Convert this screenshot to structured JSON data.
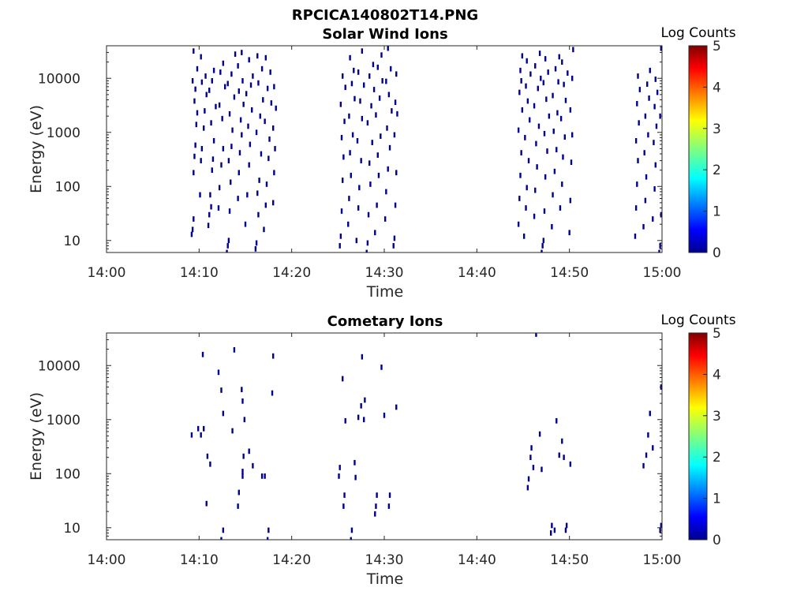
{
  "figure_title": "RPCICA140802T14.PNG",
  "chart_data": [
    {
      "type": "heatmap",
      "title": "Solar Wind Ions",
      "xlabel": "Time",
      "ylabel": "Energy (eV)",
      "xticks": [
        "14:00",
        "14:10",
        "14:20",
        "14:30",
        "14:40",
        "14:50",
        "15:00"
      ],
      "xlim": [
        "14:00",
        "15:00"
      ],
      "yscale": "log",
      "yticks": [
        "10",
        "100",
        "1000",
        "10000"
      ],
      "ylim": [
        6,
        40000
      ],
      "colorbar": {
        "label": "Log Counts",
        "ticks": [
          "0",
          "1",
          "2",
          "3",
          "4",
          "5"
        ],
        "range": [
          0,
          5
        ],
        "colormap": "jet"
      },
      "marker_color": "#00008f",
      "points": [
        [
          9.2,
          13
        ],
        [
          9.3,
          16
        ],
        [
          9.4,
          25
        ],
        [
          9.4,
          180
        ],
        [
          9.5,
          360
        ],
        [
          9.6,
          580
        ],
        [
          9.7,
          1400
        ],
        [
          9.8,
          2300
        ],
        [
          9.5,
          3800
        ],
        [
          9.6,
          6300
        ],
        [
          9.3,
          9000
        ],
        [
          9.8,
          15000
        ],
        [
          9.4,
          32000
        ],
        [
          10.1,
          70
        ],
        [
          10.2,
          300
        ],
        [
          10.3,
          500
        ],
        [
          10.5,
          1200
        ],
        [
          10.6,
          2500
        ],
        [
          10.8,
          5000
        ],
        [
          10.3,
          8500
        ],
        [
          10.7,
          11000
        ],
        [
          10.2,
          25000
        ],
        [
          11.0,
          19
        ],
        [
          11.1,
          30
        ],
        [
          11.3,
          42
        ],
        [
          11.2,
          70
        ],
        [
          11.4,
          200
        ],
        [
          11.5,
          320
        ],
        [
          11.6,
          700
        ],
        [
          11.3,
          1500
        ],
        [
          11.8,
          3000
        ],
        [
          11.1,
          6000
        ],
        [
          11.4,
          9000
        ],
        [
          11.6,
          14000
        ],
        [
          12.1,
          40
        ],
        [
          12.2,
          95
        ],
        [
          12.4,
          250
        ],
        [
          12.6,
          500
        ],
        [
          12.5,
          1800
        ],
        [
          12.2,
          3200
        ],
        [
          12.8,
          7000
        ],
        [
          12.3,
          13000
        ],
        [
          12.6,
          19000
        ],
        [
          13.0,
          6
        ],
        [
          13.1,
          8
        ],
        [
          13.2,
          10
        ],
        [
          13.3,
          35
        ],
        [
          13.4,
          120
        ],
        [
          13.2,
          300
        ],
        [
          13.5,
          550
        ],
        [
          13.6,
          1100
        ],
        [
          13.3,
          2200
        ],
        [
          13.8,
          4500
        ],
        [
          13.1,
          8000
        ],
        [
          13.5,
          12000
        ],
        [
          13.9,
          28000
        ],
        [
          14.2,
          60
        ],
        [
          14.3,
          180
        ],
        [
          14.4,
          420
        ],
        [
          14.6,
          900
        ],
        [
          14.5,
          1700
        ],
        [
          14.8,
          3300
        ],
        [
          14.3,
          5800
        ],
        [
          14.7,
          9000
        ],
        [
          14.2,
          17000
        ],
        [
          14.6,
          30000
        ],
        [
          15.0,
          20
        ],
        [
          15.2,
          70
        ],
        [
          15.4,
          250
        ],
        [
          15.5,
          600
        ],
        [
          15.3,
          1300
        ],
        [
          15.7,
          2600
        ],
        [
          15.1,
          5200
        ],
        [
          15.6,
          7500
        ],
        [
          15.8,
          11000
        ],
        [
          15.4,
          22000
        ],
        [
          16.1,
          7
        ],
        [
          16.2,
          9
        ],
        [
          16.4,
          30
        ],
        [
          16.3,
          75
        ],
        [
          16.5,
          130
        ],
        [
          16.7,
          400
        ],
        [
          16.2,
          1000
        ],
        [
          16.6,
          2000
        ],
        [
          16.9,
          4000
        ],
        [
          16.4,
          8200
        ],
        [
          16.8,
          15000
        ],
        [
          16.3,
          26000
        ],
        [
          17.0,
          16
        ],
        [
          17.2,
          45
        ],
        [
          17.3,
          110
        ],
        [
          17.5,
          330
        ],
        [
          17.6,
          750
        ],
        [
          17.1,
          1600
        ],
        [
          17.8,
          3500
        ],
        [
          17.4,
          6500
        ],
        [
          17.7,
          13000
        ],
        [
          17.2,
          24000
        ],
        [
          18.0,
          50
        ],
        [
          18.1,
          180
        ],
        [
          18.2,
          500
        ],
        [
          18.0,
          1200
        ],
        [
          18.3,
          2800
        ],
        [
          18.1,
          7000
        ],
        [
          25.2,
          8
        ],
        [
          25.3,
          12
        ],
        [
          25.4,
          35
        ],
        [
          25.5,
          130
        ],
        [
          25.6,
          350
        ],
        [
          25.4,
          800
        ],
        [
          25.7,
          1600
        ],
        [
          25.3,
          3300
        ],
        [
          25.8,
          6800
        ],
        [
          25.5,
          11000
        ],
        [
          26.1,
          20
        ],
        [
          26.2,
          60
        ],
        [
          26.4,
          160
        ],
        [
          26.3,
          420
        ],
        [
          26.6,
          900
        ],
        [
          26.2,
          2000
        ],
        [
          26.8,
          4200
        ],
        [
          26.5,
          8000
        ],
        [
          26.7,
          14000
        ],
        [
          26.3,
          24000
        ],
        [
          27.0,
          10
        ],
        [
          27.2,
          40
        ],
        [
          27.3,
          95
        ],
        [
          27.5,
          300
        ],
        [
          27.1,
          700
        ],
        [
          27.6,
          1800
        ],
        [
          27.4,
          3800
        ],
        [
          27.8,
          7500
        ],
        [
          27.2,
          13000
        ],
        [
          27.6,
          32000
        ],
        [
          28.1,
          6
        ],
        [
          28.2,
          9
        ],
        [
          28.3,
          30
        ],
        [
          28.5,
          110
        ],
        [
          28.4,
          270
        ],
        [
          28.7,
          650
        ],
        [
          28.2,
          1500
        ],
        [
          28.6,
          3100
        ],
        [
          28.9,
          6200
        ],
        [
          28.4,
          11000
        ],
        [
          28.8,
          18000
        ],
        [
          29.0,
          14
        ],
        [
          29.2,
          45
        ],
        [
          29.4,
          160
        ],
        [
          29.3,
          380
        ],
        [
          29.6,
          850
        ],
        [
          29.1,
          2100
        ],
        [
          29.5,
          4300
        ],
        [
          29.8,
          9000
        ],
        [
          29.3,
          16000
        ],
        [
          29.7,
          27000
        ],
        [
          30.1,
          25
        ],
        [
          30.2,
          80
        ],
        [
          30.4,
          210
        ],
        [
          30.6,
          520
        ],
        [
          30.3,
          1200
        ],
        [
          30.8,
          2500
        ],
        [
          30.5,
          5000
        ],
        [
          30.2,
          8800
        ],
        [
          30.7,
          15000
        ],
        [
          30.4,
          36000
        ],
        [
          31.0,
          8
        ],
        [
          31.1,
          11
        ],
        [
          31.2,
          45
        ],
        [
          31.3,
          180
        ],
        [
          31.1,
          900
        ],
        [
          31.4,
          2200
        ],
        [
          31.2,
          3600
        ],
        [
          31.3,
          12000
        ],
        [
          44.5,
          20
        ],
        [
          44.6,
          60
        ],
        [
          44.7,
          160
        ],
        [
          44.8,
          420
        ],
        [
          44.5,
          1100
        ],
        [
          44.9,
          2600
        ],
        [
          44.6,
          5500
        ],
        [
          44.8,
          9000
        ],
        [
          44.7,
          14000
        ],
        [
          44.9,
          26000
        ],
        [
          45.1,
          12
        ],
        [
          45.3,
          40
        ],
        [
          45.4,
          95
        ],
        [
          45.6,
          300
        ],
        [
          45.2,
          800
        ],
        [
          45.7,
          1700
        ],
        [
          45.5,
          3800
        ],
        [
          45.3,
          7200
        ],
        [
          45.8,
          12000
        ],
        [
          45.4,
          21000
        ],
        [
          46.2,
          28
        ],
        [
          46.3,
          85
        ],
        [
          46.5,
          230
        ],
        [
          46.4,
          620
        ],
        [
          46.7,
          1300
        ],
        [
          46.2,
          3100
        ],
        [
          46.6,
          6500
        ],
        [
          46.9,
          10000
        ],
        [
          46.3,
          17000
        ],
        [
          46.8,
          29000
        ],
        [
          47.0,
          6
        ],
        [
          47.1,
          8
        ],
        [
          47.2,
          10
        ],
        [
          47.3,
          35
        ],
        [
          47.4,
          150
        ],
        [
          47.6,
          450
        ],
        [
          47.3,
          950
        ],
        [
          47.8,
          2000
        ],
        [
          47.5,
          4100
        ],
        [
          47.2,
          8300
        ],
        [
          47.7,
          13000
        ],
        [
          47.4,
          23000
        ],
        [
          48.1,
          18
        ],
        [
          48.2,
          70
        ],
        [
          48.4,
          190
        ],
        [
          48.6,
          480
        ],
        [
          48.3,
          1050
        ],
        [
          48.7,
          2300
        ],
        [
          48.2,
          4800
        ],
        [
          48.8,
          8600
        ],
        [
          48.5,
          15000
        ],
        [
          48.9,
          25000
        ],
        [
          49.0,
          40
        ],
        [
          49.2,
          110
        ],
        [
          49.3,
          350
        ],
        [
          49.5,
          820
        ],
        [
          49.1,
          1800
        ],
        [
          49.6,
          3900
        ],
        [
          49.4,
          7700
        ],
        [
          49.8,
          12500
        ],
        [
          49.2,
          20000
        ],
        [
          50.0,
          14
        ],
        [
          50.1,
          55
        ],
        [
          50.2,
          280
        ],
        [
          50.3,
          900
        ],
        [
          50.1,
          2600
        ],
        [
          50.3,
          10000
        ],
        [
          50.4,
          34000
        ],
        [
          57.1,
          12
        ],
        [
          57.2,
          40
        ],
        [
          57.3,
          110
        ],
        [
          57.4,
          300
        ],
        [
          57.2,
          700
        ],
        [
          57.5,
          1500
        ],
        [
          57.3,
          3400
        ],
        [
          57.6,
          6200
        ],
        [
          57.4,
          11000
        ],
        [
          58.0,
          18
        ],
        [
          58.2,
          55
        ],
        [
          58.3,
          150
        ],
        [
          58.1,
          420
        ],
        [
          58.5,
          900
        ],
        [
          58.2,
          2000
        ],
        [
          58.6,
          4300
        ],
        [
          58.4,
          7800
        ],
        [
          58.7,
          14000
        ],
        [
          59.0,
          25
        ],
        [
          59.2,
          90
        ],
        [
          59.3,
          250
        ],
        [
          59.1,
          650
        ],
        [
          59.4,
          1300
        ],
        [
          59.2,
          3000
        ],
        [
          59.5,
          5500
        ],
        [
          59.3,
          9600
        ],
        [
          59.7,
          6
        ],
        [
          59.8,
          8
        ],
        [
          59.9,
          30
        ],
        [
          59.8,
          2000
        ],
        [
          59.9,
          36000
        ]
      ]
    },
    {
      "type": "heatmap",
      "title": "Cometary Ions",
      "xlabel": "Time",
      "ylabel": "Energy (eV)",
      "xticks": [
        "14:00",
        "14:10",
        "14:20",
        "14:30",
        "14:40",
        "14:50",
        "15:00"
      ],
      "xlim": [
        "14:00",
        "15:00"
      ],
      "yscale": "log",
      "yticks": [
        "10",
        "100",
        "1000",
        "10000"
      ],
      "ylim": [
        6,
        40000
      ],
      "colorbar": {
        "label": "Log Counts",
        "ticks": [
          "0",
          "1",
          "2",
          "3",
          "4",
          "5"
        ],
        "range": [
          0,
          5
        ],
        "colormap": "jet"
      },
      "marker_color": "#00008f",
      "points": [
        [
          9.2,
          520
        ],
        [
          9.9,
          680
        ],
        [
          10.2,
          520
        ],
        [
          10.5,
          680
        ],
        [
          10.4,
          16000
        ],
        [
          10.8,
          28
        ],
        [
          10.9,
          210
        ],
        [
          11.2,
          150
        ],
        [
          12.4,
          6
        ],
        [
          12.6,
          9
        ],
        [
          12.1,
          7500
        ],
        [
          12.4,
          3500
        ],
        [
          12.6,
          1300
        ],
        [
          13.6,
          620
        ],
        [
          13.8,
          19500
        ],
        [
          14.2,
          25
        ],
        [
          14.3,
          45
        ],
        [
          14.7,
          90
        ],
        [
          14.7,
          110
        ],
        [
          14.8,
          210
        ],
        [
          14.7,
          2200
        ],
        [
          14.6,
          3600
        ],
        [
          14.9,
          1000
        ],
        [
          15.4,
          260
        ],
        [
          15.8,
          140
        ],
        [
          16.8,
          90
        ],
        [
          17.1,
          90
        ],
        [
          17.4,
          6
        ],
        [
          17.5,
          9
        ],
        [
          17.9,
          3100
        ],
        [
          18.0,
          15000
        ],
        [
          25.1,
          90
        ],
        [
          25.2,
          130
        ],
        [
          25.6,
          25
        ],
        [
          25.7,
          40
        ],
        [
          25.5,
          5700
        ],
        [
          25.8,
          950
        ],
        [
          26.4,
          6
        ],
        [
          26.5,
          9
        ],
        [
          26.8,
          160
        ],
        [
          26.9,
          85
        ],
        [
          27.2,
          1100
        ],
        [
          27.5,
          1800
        ],
        [
          27.8,
          1000
        ],
        [
          27.9,
          2300
        ],
        [
          27.6,
          14500
        ],
        [
          29.0,
          18
        ],
        [
          29.1,
          25
        ],
        [
          29.2,
          40
        ],
        [
          29.7,
          9300
        ],
        [
          30.0,
          1200
        ],
        [
          30.5,
          25
        ],
        [
          30.6,
          40
        ],
        [
          31.3,
          1700
        ],
        [
          45.5,
          55
        ],
        [
          45.6,
          80
        ],
        [
          45.8,
          200
        ],
        [
          45.9,
          300
        ],
        [
          46.1,
          130
        ],
        [
          46.4,
          38000
        ],
        [
          46.8,
          540
        ],
        [
          47.0,
          120
        ],
        [
          48.0,
          8
        ],
        [
          48.1,
          11
        ],
        [
          48.4,
          9
        ],
        [
          48.6,
          950
        ],
        [
          48.9,
          220
        ],
        [
          49.2,
          400
        ],
        [
          49.4,
          200
        ],
        [
          49.6,
          9
        ],
        [
          49.7,
          11
        ],
        [
          50.1,
          150
        ],
        [
          58.0,
          140
        ],
        [
          58.3,
          220
        ],
        [
          58.5,
          520
        ],
        [
          58.7,
          1300
        ],
        [
          59.0,
          300
        ],
        [
          59.8,
          9
        ],
        [
          59.9,
          11
        ],
        [
          59.9,
          4000
        ]
      ]
    }
  ]
}
